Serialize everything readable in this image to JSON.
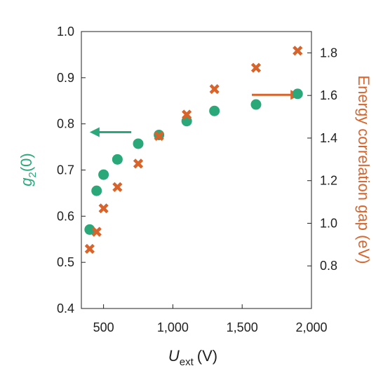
{
  "chart_data": {
    "type": "scatter",
    "title": "",
    "xlabel": {
      "main": "U",
      "sub": "ext",
      "unit": "(V)"
    },
    "ylabel_left": {
      "main": "g",
      "sub": "2",
      "rest": "(0)"
    },
    "ylabel_right": "Energy correlation gap (eV)",
    "xlim": [
      340,
      2000
    ],
    "ylim_left": [
      0.4,
      1.0
    ],
    "ylim_right": [
      0.6,
      1.9
    ],
    "x_ticks": [
      500,
      1000,
      1500,
      2000
    ],
    "x_tick_labels": [
      "500",
      "1,000",
      "1,500",
      "2,000"
    ],
    "y_left_ticks": [
      0.4,
      0.5,
      0.6,
      0.7,
      0.8,
      0.9,
      1.0
    ],
    "y_left_tick_labels": [
      "0.4",
      "0.5",
      "0.6",
      "0.7",
      "0.8",
      "0.9",
      "1.0"
    ],
    "y_right_ticks": [
      0.8,
      1.0,
      1.2,
      1.4,
      1.6,
      1.8
    ],
    "y_right_tick_labels": [
      "0.8",
      "1.0",
      "1.2",
      "1.4",
      "1.6",
      "1.8"
    ],
    "grid": false,
    "series": [
      {
        "axis": "left",
        "marker": "circle",
        "color": "#2aa87a",
        "x": [
          400,
          450,
          500,
          600,
          750,
          900,
          1100,
          1300,
          1600,
          1900
        ],
        "y": [
          0.571,
          0.655,
          0.69,
          0.723,
          0.757,
          0.776,
          0.806,
          0.828,
          0.842,
          0.865
        ]
      },
      {
        "axis": "right",
        "marker": "x",
        "color": "#d9642b",
        "x": [
          400,
          450,
          500,
          600,
          750,
          900,
          1100,
          1300,
          1600,
          1900
        ],
        "y": [
          0.88,
          0.96,
          1.07,
          1.17,
          1.28,
          1.41,
          1.51,
          1.63,
          1.73,
          1.81
        ]
      }
    ],
    "annotations": [
      {
        "type": "arrow",
        "direction": "left",
        "axis": "left",
        "color": "#2aa87a",
        "x_from": 700,
        "x_to": 400,
        "y": 0.782
      },
      {
        "type": "arrow",
        "direction": "right",
        "axis": "right",
        "color": "#d9642b",
        "x_from": 1570,
        "x_to": 1920,
        "y": 1.603
      }
    ]
  }
}
